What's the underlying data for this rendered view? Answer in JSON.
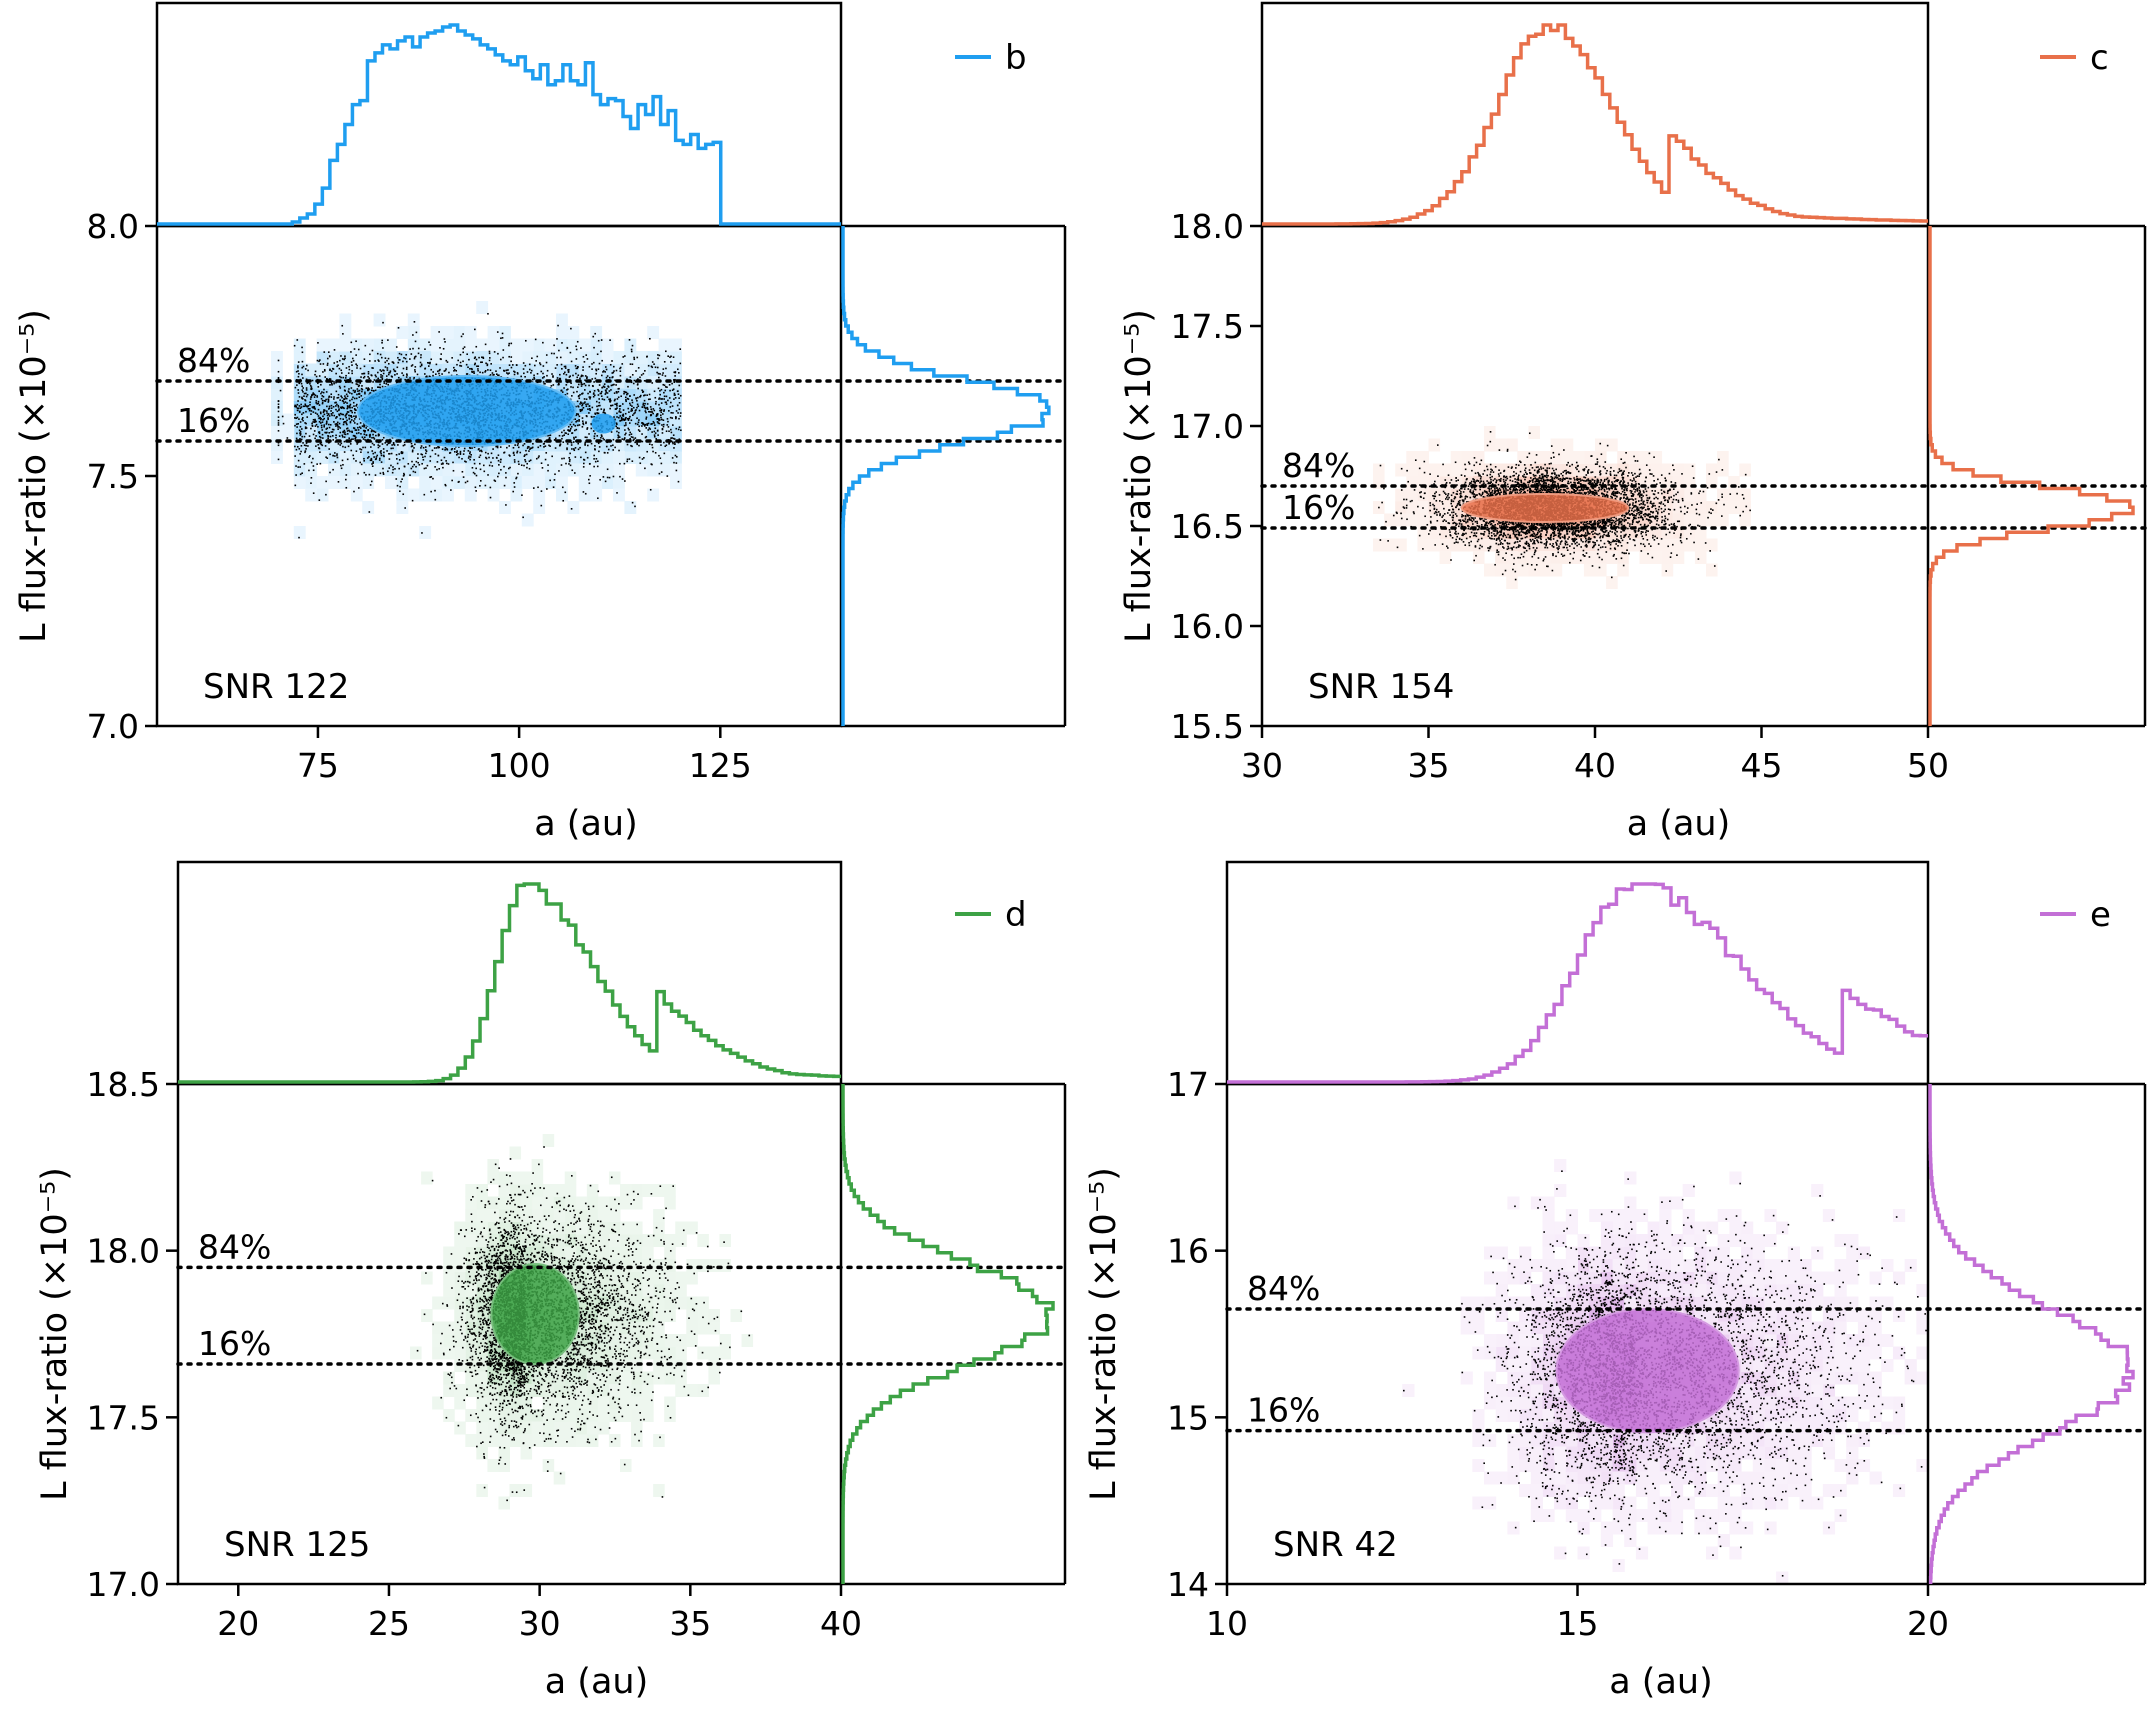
{
  "figure": {
    "panels": 4,
    "xlabel": "a (au)",
    "ylabel": "L flux-ratio (×10⁻⁵)",
    "pct_high": "84%",
    "pct_low": "16%"
  },
  "chart_data": [
    {
      "type": "scatter",
      "planet": "b",
      "legend": "b",
      "color": "#1f9ef0",
      "snr_label": "SNR 122",
      "xlabel": "a (au)",
      "ylabel": "L flux-ratio (×10⁻⁵)",
      "xlim": [
        55,
        140
      ],
      "ylim": [
        7.0,
        8.0
      ],
      "xticks": [
        75,
        100,
        125
      ],
      "yticks": [
        7.0,
        7.5,
        8.0
      ],
      "ytick_labels": [
        "7.0",
        "7.5",
        "8.0"
      ],
      "percentile_16": 7.57,
      "percentile_84": 7.69,
      "a_range": [
        72,
        120
      ],
      "a_peak": 91,
      "flux_center": 7.63,
      "flux_sigma": 0.06,
      "a_histogram": [
        0.0,
        0.0,
        0.0,
        0.0,
        0.0,
        0.0,
        0.0,
        0.0,
        0.0,
        0.0,
        0.0,
        0.0,
        0.0,
        0.0,
        0.0,
        0.0,
        0.0,
        0.0,
        0.01,
        0.03,
        0.05,
        0.1,
        0.18,
        0.32,
        0.4,
        0.5,
        0.6,
        0.62,
        0.82,
        0.86,
        0.9,
        0.88,
        0.92,
        0.94,
        0.89,
        0.94,
        0.96,
        0.97,
        0.99,
        1.0,
        0.97,
        0.95,
        0.93,
        0.9,
        0.88,
        0.85,
        0.82,
        0.8,
        0.84,
        0.77,
        0.73,
        0.8,
        0.7,
        0.72,
        0.8,
        0.72,
        0.7,
        0.81,
        0.65,
        0.6,
        0.63,
        0.62,
        0.54,
        0.48,
        0.6,
        0.55,
        0.64,
        0.5,
        0.57,
        0.42,
        0.4,
        0.45,
        0.38,
        0.4,
        0.41,
        0.0,
        0.0,
        0.0,
        0.0,
        0.0,
        0.0,
        0.0,
        0.0,
        0.0,
        0.0,
        0.0,
        0.0,
        0.0,
        0.0,
        0.0,
        0.0
      ],
      "flux_histogram_center": 7.63,
      "flux_histogram_sigma": 0.06
    },
    {
      "type": "scatter",
      "planet": "c",
      "legend": "c",
      "color": "#e8704a",
      "snr_label": "SNR 154",
      "xlabel": "a (au)",
      "ylabel": "L flux-ratio (×10⁻⁵)",
      "xlim": [
        30,
        50
      ],
      "ylim": [
        15.5,
        18.0
      ],
      "xticks": [
        30,
        35,
        40,
        45,
        50
      ],
      "yticks": [
        15.5,
        16.0,
        16.5,
        17.0,
        17.5,
        18.0
      ],
      "ytick_labels": [
        "15.5",
        "16.0",
        "16.5",
        "17.0",
        "17.5",
        "18.0"
      ],
      "percentile_16": 16.49,
      "percentile_84": 16.7,
      "a_peak": 38.7,
      "a_sigma_left": 1.6,
      "a_sigma_right": 1.8,
      "flux_center": 16.59,
      "flux_sigma": 0.1
    },
    {
      "type": "scatter",
      "planet": "d",
      "legend": "d",
      "color": "#3da245",
      "snr_label": "SNR 125",
      "xlabel": "a (au)",
      "ylabel": "L flux-ratio (×10⁻⁵)",
      "xlim": [
        18,
        40
      ],
      "ylim": [
        17.0,
        18.5
      ],
      "xticks": [
        20,
        25,
        30,
        35,
        40
      ],
      "yticks": [
        17.0,
        17.5,
        18.0,
        18.5
      ],
      "ytick_labels": [
        "17.0",
        "17.5",
        "18.0",
        "18.5"
      ],
      "percentile_16": 17.66,
      "percentile_84": 17.95,
      "a_peak": 29.5,
      "a_sigma_left": 0.9,
      "a_sigma_right": 2.2,
      "flux_center": 17.81,
      "flux_sigma": 0.15
    },
    {
      "type": "scatter",
      "planet": "e",
      "legend": "e",
      "color": "#c36fd6",
      "snr_label": "SNR 42",
      "xlabel": "a (au)",
      "ylabel": "L flux-ratio (×10⁻⁵)",
      "xlim": [
        10,
        20
      ],
      "ylim": [
        14.0,
        17.0
      ],
      "xticks": [
        10,
        15,
        20
      ],
      "yticks": [
        14,
        15,
        16,
        17
      ],
      "ytick_labels": [
        "14",
        "15",
        "16",
        "17"
      ],
      "percentile_16": 14.92,
      "percentile_84": 15.65,
      "a_peak": 15.8,
      "a_sigma_left": 0.8,
      "a_sigma_right": 1.5,
      "flux_center": 15.28,
      "flux_sigma": 0.37
    }
  ]
}
